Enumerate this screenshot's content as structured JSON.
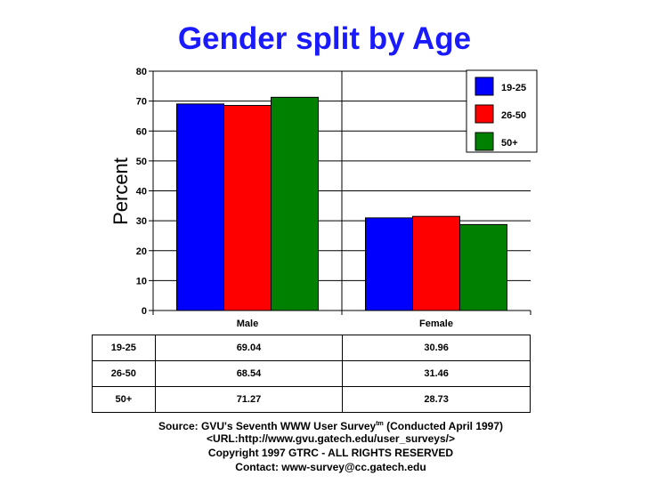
{
  "chart_data": {
    "type": "bar",
    "title": "Gender split by Age",
    "ylabel": "Percent",
    "xlabel": "",
    "ylim": [
      0,
      80
    ],
    "yticks": [
      0,
      10,
      20,
      30,
      40,
      50,
      60,
      70,
      80
    ],
    "categories": [
      "Male",
      "Female"
    ],
    "series": [
      {
        "name": "19-25",
        "values": [
          69.04,
          30.96
        ],
        "color": "#0000ff"
      },
      {
        "name": "26-50",
        "values": [
          68.54,
          31.46
        ],
        "color": "#ff0000"
      },
      {
        "name": "50+",
        "values": [
          71.27,
          28.73
        ],
        "color": "#008000"
      }
    ],
    "grid": true,
    "legend_position": "top-right"
  },
  "table": {
    "rows": [
      {
        "label": "19-25",
        "values": [
          "69.04",
          "30.96"
        ]
      },
      {
        "label": "26-50",
        "values": [
          "68.54",
          "31.46"
        ]
      },
      {
        "label": "50+",
        "values": [
          "71.27",
          "28.73"
        ]
      }
    ]
  },
  "footer": {
    "source_prefix": "Source: GVU's Seventh WWW User Survey",
    "source_sup": "tm",
    "source_suffix": " (Conducted April 1997)",
    "url": "<URL:http://www.gvu.gatech.edu/user_surveys/>",
    "copyright": "Copyright 1997 GTRC - ALL RIGHTS RESERVED",
    "contact": "Contact: www-survey@cc.gatech.edu"
  }
}
